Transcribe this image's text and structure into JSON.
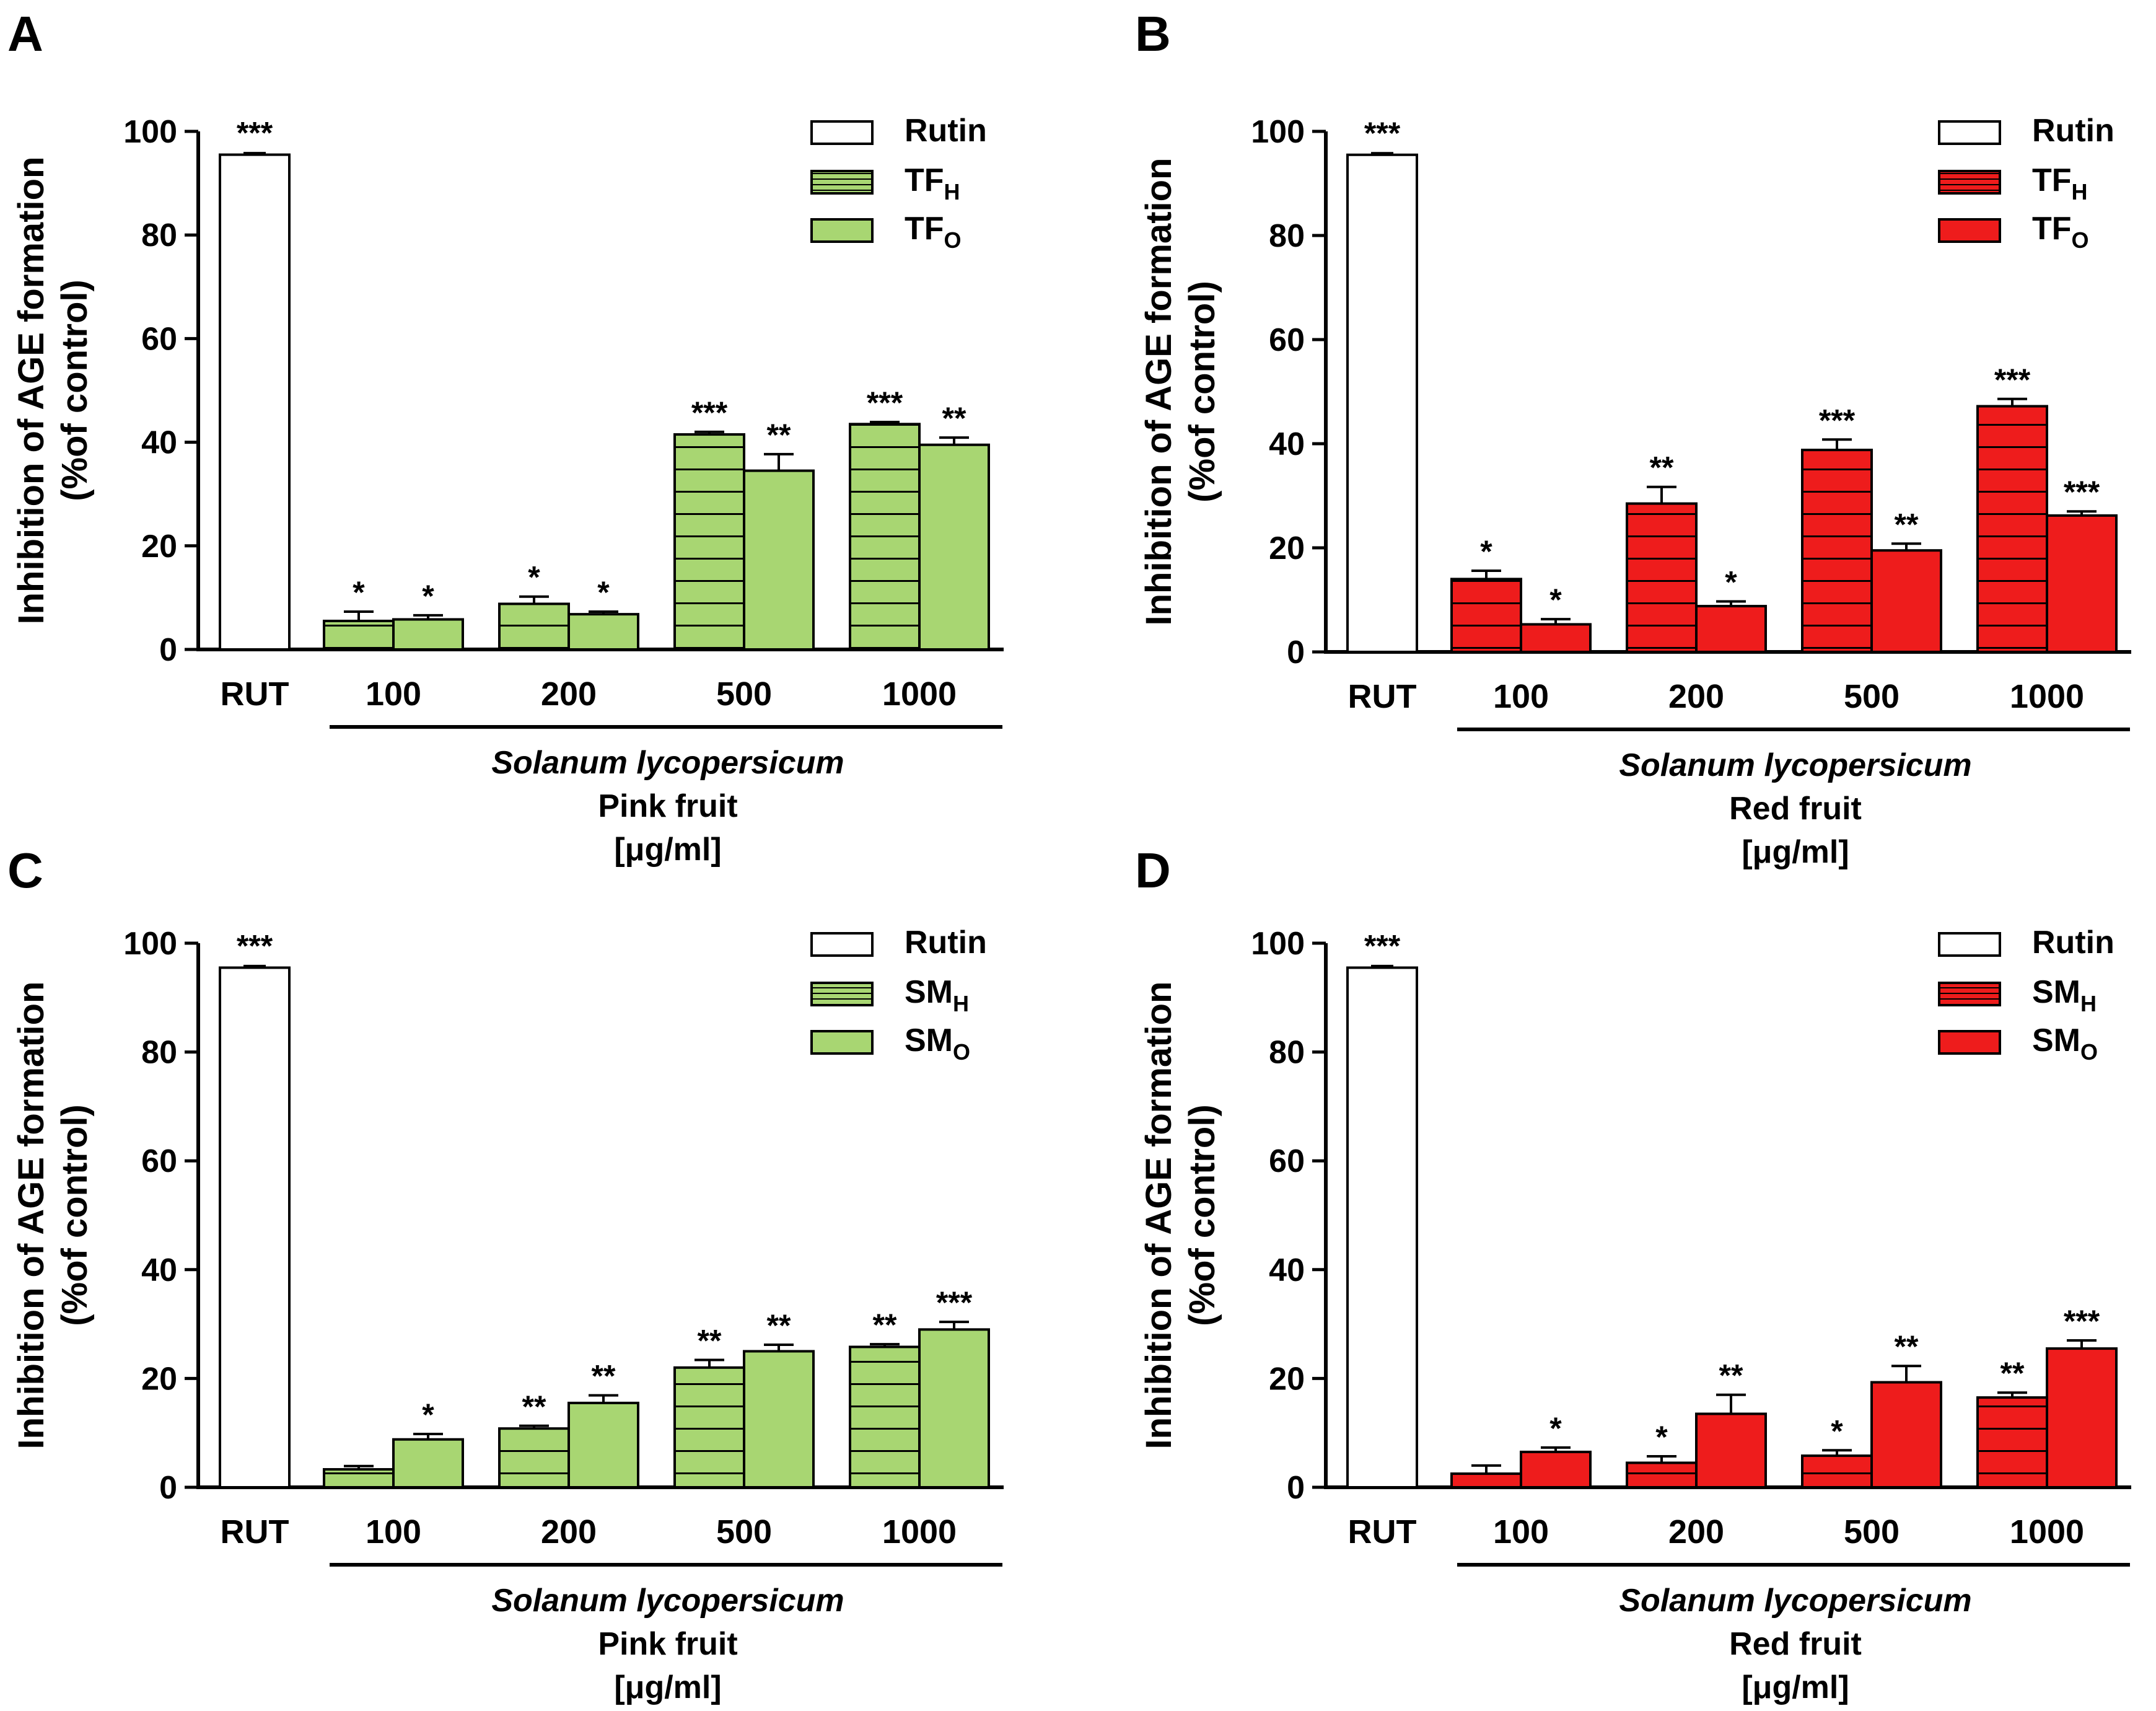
{
  "colors": {
    "green": "#a8d672",
    "red": "#ee1c1c",
    "outline": "#000000",
    "rutin": "#ffffff"
  },
  "chart_data": [
    {
      "type": "bar",
      "panel": "A",
      "ylabel_line1": "Inhibition of AGE formation",
      "ylabel_line2": "(%of control)",
      "ylim": [
        0,
        100
      ],
      "yticks": [
        "0",
        "20",
        "40",
        "60",
        "80",
        "100"
      ],
      "rutin": {
        "label": "RUT",
        "value": 95.5,
        "err": 0.3,
        "sig": "***"
      },
      "categories": [
        "100",
        "200",
        "500",
        "1000"
      ],
      "series": [
        {
          "name": "TF",
          "sub": "H",
          "hatched": true,
          "values": [
            5.5,
            8.8,
            41.5,
            43.5
          ],
          "errors": [
            1.8,
            1.4,
            0.5,
            0.4
          ],
          "sig": [
            "*",
            "*",
            "***",
            "***"
          ]
        },
        {
          "name": "TF",
          "sub": "O",
          "hatched": false,
          "values": [
            5.8,
            6.8,
            34.5,
            39.5
          ],
          "errors": [
            0.8,
            0.5,
            3.2,
            1.4
          ],
          "sig": [
            "*",
            "*",
            "**",
            "**"
          ]
        }
      ],
      "legend": [
        {
          "name": "Rutin",
          "sub": ""
        },
        {
          "name": "TF",
          "sub": "H"
        },
        {
          "name": "TF",
          "sub": "O"
        }
      ],
      "xlabel_species": "Solanum lycopersicum",
      "xlabel_fruit": "Pink fruit",
      "xlabel_unit": "[μg/ml]",
      "color": "green"
    },
    {
      "type": "bar",
      "panel": "B",
      "ylabel_line1": "Inhibition of AGE formation",
      "ylabel_line2": "(%of control)",
      "ylim": [
        0,
        100
      ],
      "yticks": [
        "0",
        "20",
        "40",
        "60",
        "80",
        "100"
      ],
      "rutin": {
        "label": "RUT",
        "value": 95.5,
        "err": 0.3,
        "sig": "***"
      },
      "categories": [
        "100",
        "200",
        "500",
        "1000"
      ],
      "series": [
        {
          "name": "TF",
          "sub": "H",
          "hatched": true,
          "values": [
            14,
            28.5,
            38.8,
            47.2
          ],
          "errors": [
            1.6,
            3.2,
            2.0,
            1.4
          ],
          "sig": [
            "*",
            "**",
            "***",
            "***"
          ]
        },
        {
          "name": "TF",
          "sub": "O",
          "hatched": false,
          "values": [
            5.3,
            8.8,
            19.5,
            26.2
          ],
          "errors": [
            1.0,
            0.9,
            1.3,
            0.8
          ],
          "sig": [
            "*",
            "*",
            "**",
            "***"
          ]
        }
      ],
      "legend": [
        {
          "name": "Rutin",
          "sub": ""
        },
        {
          "name": "TF",
          "sub": "H"
        },
        {
          "name": "TF",
          "sub": "O"
        }
      ],
      "xlabel_species": "Solanum lycopersicum",
      "xlabel_fruit": "Red fruit",
      "xlabel_unit": "[μg/ml]",
      "color": "red"
    },
    {
      "type": "bar",
      "panel": "C",
      "ylabel_line1": "Inhibition of AGE formation",
      "ylabel_line2": "(%of control)",
      "ylim": [
        0,
        100
      ],
      "yticks": [
        "0",
        "20",
        "40",
        "60",
        "80",
        "100"
      ],
      "rutin": {
        "label": "RUT",
        "value": 95.5,
        "err": 0.3,
        "sig": "***"
      },
      "categories": [
        "100",
        "200",
        "500",
        "1000"
      ],
      "series": [
        {
          "name": "SM",
          "sub": "H",
          "hatched": true,
          "values": [
            3.3,
            10.8,
            22.0,
            25.8
          ],
          "errors": [
            0.6,
            0.5,
            1.4,
            0.5
          ],
          "sig": [
            "",
            "**",
            "**",
            "**"
          ]
        },
        {
          "name": "SM",
          "sub": "O",
          "hatched": false,
          "values": [
            8.8,
            15.5,
            25.0,
            29.0
          ],
          "errors": [
            1.0,
            1.4,
            1.2,
            1.4
          ],
          "sig": [
            "*",
            "**",
            "**",
            "***"
          ]
        }
      ],
      "legend": [
        {
          "name": "Rutin",
          "sub": ""
        },
        {
          "name": "SM",
          "sub": "H"
        },
        {
          "name": "SM",
          "sub": "O"
        }
      ],
      "xlabel_species": "Solanum lycopersicum",
      "xlabel_fruit": "Pink fruit",
      "xlabel_unit": "[μg/ml]",
      "color": "green"
    },
    {
      "type": "bar",
      "panel": "D",
      "ylabel_line1": "Inhibition of AGE formation",
      "ylabel_line2": "(%of control)",
      "ylim": [
        0,
        100
      ],
      "yticks": [
        "0",
        "20",
        "40",
        "60",
        "80",
        "100"
      ],
      "rutin": {
        "label": "RUT",
        "value": 95.5,
        "err": 0.3,
        "sig": "***"
      },
      "categories": [
        "100",
        "200",
        "500",
        "1000"
      ],
      "series": [
        {
          "name": "SM",
          "sub": "H",
          "hatched": true,
          "values": [
            2.5,
            4.5,
            5.8,
            16.5
          ],
          "errors": [
            1.5,
            1.2,
            1.0,
            0.9
          ],
          "sig": [
            "",
            "*",
            "*",
            "**"
          ]
        },
        {
          "name": "SM",
          "sub": "O",
          "hatched": false,
          "values": [
            6.5,
            13.5,
            19.3,
            25.5
          ],
          "errors": [
            0.8,
            3.5,
            3.0,
            1.5
          ],
          "sig": [
            "*",
            "**",
            "**",
            "***"
          ]
        }
      ],
      "legend": [
        {
          "name": "Rutin",
          "sub": ""
        },
        {
          "name": "SM",
          "sub": "H"
        },
        {
          "name": "SM",
          "sub": "O"
        }
      ],
      "xlabel_species": "Solanum lycopersicum",
      "xlabel_fruit": "Red fruit",
      "xlabel_unit": "[μg/ml]",
      "color": "red"
    }
  ]
}
